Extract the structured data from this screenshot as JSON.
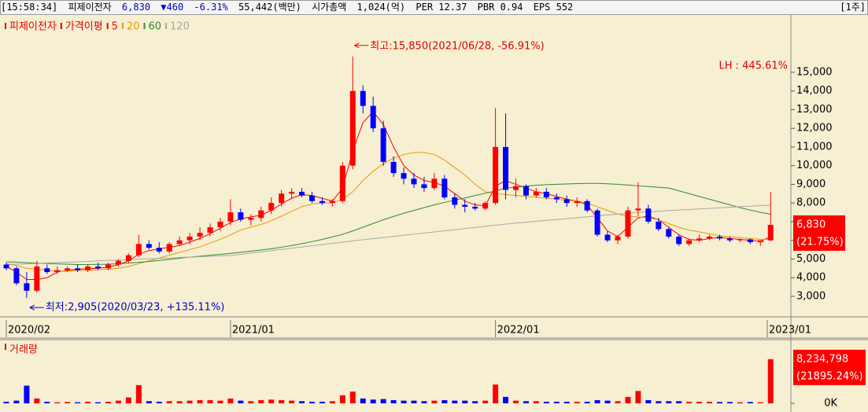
{
  "header": {
    "time": "[15:58:34]",
    "name": "피제이전자",
    "price": "6,830",
    "change": "▼460",
    "change_pct": "-6.31%",
    "volume": "55,442(백만)",
    "market_cap_label": "시가총액",
    "market_cap": "1,024(억)",
    "per": "PER 12.37",
    "pbr": "PBR 0.94",
    "eps": "EPS 552",
    "period": "[1주]"
  },
  "chart_data": {
    "type": "candlestick",
    "title": "피제이전자",
    "ma_label": "가격이평",
    "categories": [
      "2020/02",
      null,
      null,
      null,
      null,
      null,
      null,
      null,
      null,
      null,
      null,
      null,
      null,
      null,
      null,
      null,
      null,
      null,
      null,
      null,
      null,
      null,
      "2021/01",
      null,
      null,
      null,
      null,
      null,
      null,
      null,
      null,
      null,
      null,
      null,
      null,
      null,
      null,
      null,
      null,
      null,
      null,
      null,
      null,
      null,
      null,
      null,
      null,
      null,
      "2022/01",
      null,
      null,
      null,
      null,
      null,
      null,
      null,
      null,
      null,
      null,
      null,
      null,
      null,
      null,
      null,
      null,
      null,
      null,
      null,
      null,
      null,
      null,
      null,
      null,
      null,
      null,
      "2023/01"
    ],
    "open": [
      4700,
      4500,
      3700,
      3300,
      4500,
      4300,
      4400,
      4500,
      4400,
      4600,
      4500,
      4700,
      4900,
      5200,
      5800,
      5600,
      5400,
      5800,
      6000,
      6200,
      6400,
      6700,
      7000,
      7500,
      7100,
      7200,
      7600,
      8000,
      8500,
      8600,
      8400,
      8100,
      8000,
      8100,
      10000,
      14000,
      13200,
      12000,
      10200,
      9600,
      9300,
      9000,
      8800,
      9300,
      8300,
      7900,
      7800,
      7700,
      8000,
      11000,
      8700,
      8900,
      8400,
      8600,
      8300,
      8200,
      8000,
      8100,
      7600,
      6300,
      6000,
      6200,
      7600,
      7700,
      7000,
      6600,
      6200,
      5800,
      6000,
      6100,
      6200,
      6100,
      6000,
      6050,
      5900,
      6000
    ],
    "high": [
      4800,
      4600,
      4300,
      4900,
      4700,
      4600,
      4600,
      4700,
      4700,
      4800,
      4800,
      5000,
      5300,
      6300,
      6000,
      5900,
      5900,
      6200,
      6400,
      6700,
      6900,
      7200,
      8200,
      7700,
      7400,
      7800,
      8300,
      8700,
      8800,
      8800,
      8600,
      8300,
      8200,
      10200,
      15850,
      14300,
      13700,
      12400,
      10500,
      9900,
      9600,
      9400,
      9600,
      9500,
      8500,
      8200,
      8000,
      8100,
      13100,
      12800,
      9300,
      9000,
      8800,
      8800,
      8500,
      8400,
      8300,
      8200,
      7700,
      6500,
      6300,
      7800,
      9100,
      7900,
      7200,
      6700,
      6300,
      6100,
      6300,
      6300,
      6300,
      6200,
      6100,
      6100,
      6000,
      8600
    ],
    "low": [
      4400,
      3600,
      2905,
      3200,
      4200,
      4200,
      4300,
      4300,
      4300,
      4400,
      4400,
      4600,
      4800,
      5100,
      5500,
      5300,
      5300,
      5700,
      5800,
      6000,
      6200,
      6500,
      6800,
      7000,
      6800,
      7000,
      7400,
      7800,
      8200,
      8300,
      8000,
      7900,
      7800,
      8000,
      9800,
      12800,
      11800,
      10000,
      9400,
      9000,
      8800,
      8600,
      8700,
      8200,
      7700,
      7500,
      7600,
      7600,
      7900,
      8200,
      8300,
      8200,
      8300,
      8200,
      8000,
      7800,
      7800,
      7500,
      6200,
      5900,
      5800,
      6100,
      7300,
      6900,
      6500,
      6100,
      5700,
      5700,
      5900,
      6000,
      6000,
      5900,
      5900,
      5800,
      5700,
      5950
    ],
    "close": [
      4500,
      3700,
      3300,
      4600,
      4300,
      4400,
      4500,
      4400,
      4600,
      4500,
      4700,
      4900,
      5200,
      5800,
      5600,
      5400,
      5800,
      6000,
      6200,
      6400,
      6700,
      7000,
      7500,
      7100,
      7200,
      7600,
      8000,
      8500,
      8600,
      8400,
      8100,
      8000,
      8100,
      10000,
      14000,
      13200,
      12000,
      10200,
      9600,
      9300,
      9000,
      8800,
      9300,
      8300,
      7900,
      7800,
      7700,
      8000,
      11000,
      8700,
      8900,
      8400,
      8600,
      8300,
      8200,
      8000,
      8100,
      7600,
      6300,
      6000,
      6200,
      7600,
      7700,
      7000,
      6600,
      6200,
      5800,
      6000,
      6100,
      6200,
      6100,
      6000,
      6050,
      5900,
      6000,
      6830
    ],
    "up_color": "#ff0000",
    "down_color": "#0000ff",
    "moving_averages": [
      {
        "name": "5",
        "color": "#ff0000",
        "values": [
          4600,
          4300,
          3900,
          3900,
          4000,
          4300,
          4400,
          4450,
          4480,
          4500,
          4560,
          4700,
          4900,
          5250,
          5450,
          5550,
          5620,
          5720,
          5900,
          6100,
          6350,
          6650,
          6950,
          7150,
          7250,
          7350,
          7600,
          7950,
          8250,
          8450,
          8400,
          8250,
          8100,
          8800,
          10800,
          12300,
          12900,
          12200,
          11000,
          10000,
          9500,
          9200,
          9100,
          8900,
          8500,
          8100,
          7900,
          7850,
          8900,
          9200,
          9000,
          8800,
          8600,
          8500,
          8350,
          8200,
          8100,
          7900,
          7200,
          6500,
          6200,
          6700,
          7200,
          7300,
          7100,
          6700,
          6300,
          6050,
          6000,
          6100,
          6150,
          6100,
          6050,
          6000,
          5950,
          6200
        ]
      },
      {
        "name": "20",
        "color": "#e89a00",
        "values": [
          4750,
          4650,
          4500,
          4450,
          4400,
          4350,
          4350,
          4380,
          4400,
          4420,
          4450,
          4500,
          4600,
          4750,
          4900,
          5050,
          5200,
          5350,
          5500,
          5650,
          5850,
          6050,
          6300,
          6550,
          6700,
          6850,
          7050,
          7300,
          7550,
          7800,
          7950,
          8000,
          8000,
          8200,
          8600,
          9200,
          9700,
          10100,
          10400,
          10600,
          10700,
          10700,
          10600,
          10300,
          9900,
          9500,
          9000,
          8600,
          8500,
          8450,
          8400,
          8350,
          8300,
          8250,
          8200,
          8150,
          8100,
          8000,
          7800,
          7600,
          7400,
          7300,
          7250,
          7200,
          7100,
          6900,
          6700,
          6550,
          6450,
          6350,
          6250,
          6200,
          6150,
          6100,
          6050,
          6050
        ]
      },
      {
        "name": "60",
        "color": "#2e8b2e",
        "values": [
          4850,
          4830,
          4800,
          4780,
          4760,
          4740,
          4720,
          4700,
          4700,
          4710,
          4720,
          4750,
          4780,
          4820,
          4870,
          4920,
          4980,
          5040,
          5100,
          5150,
          5200,
          5250,
          5300,
          5360,
          5420,
          5480,
          5550,
          5630,
          5720,
          5820,
          5930,
          6050,
          6180,
          6320,
          6500,
          6700,
          6900,
          7100,
          7280,
          7450,
          7600,
          7750,
          7900,
          8030,
          8150,
          8270,
          8400,
          8520,
          8650,
          8800,
          8850,
          8900,
          8950,
          8980,
          9000,
          9020,
          9040,
          9050,
          9050,
          9030,
          9000,
          8960,
          8920,
          8880,
          8840,
          8800,
          8650,
          8500,
          8350,
          8200,
          8050,
          7900,
          7750,
          7620,
          7500,
          7400
        ]
      },
      {
        "name": "120",
        "color": "#a8a8a8",
        "values": [
          4700,
          4720,
          4740,
          4760,
          4790,
          4810,
          4830,
          4850,
          4870,
          4900,
          4920,
          4940,
          4960,
          4990,
          5010,
          5030,
          5050,
          5080,
          5100,
          5120,
          5140,
          5170,
          5190,
          5250,
          5320,
          5380,
          5450,
          5510,
          5580,
          5640,
          5710,
          5770,
          5840,
          5900,
          5970,
          6030,
          6090,
          6150,
          6210,
          6270,
          6330,
          6390,
          6450,
          6510,
          6570,
          6630,
          6690,
          6750,
          6810,
          6870,
          6920,
          6970,
          7020,
          7070,
          7110,
          7160,
          7210,
          7260,
          7310,
          7360,
          7400,
          7450,
          7500,
          7530,
          7560,
          7590,
          7620,
          7650,
          7680,
          7710,
          7740,
          7770,
          7800,
          7830,
          7860,
          7880
        ]
      }
    ],
    "ylim": [
      1900,
      18030
    ],
    "yticks": [
      {
        "value": 3000,
        "label": "3,000"
      },
      {
        "value": 4000,
        "label": "4,000"
      },
      {
        "value": 5000,
        "label": "5,000"
      },
      {
        "value": 6000,
        "label": "6,000"
      },
      {
        "value": 7000,
        "label": "7,000"
      },
      {
        "value": 8000,
        "label": "8,000"
      },
      {
        "value": 9000,
        "label": "9,000"
      },
      {
        "value": 10000,
        "label": "10,000"
      },
      {
        "value": 11000,
        "label": "11,000"
      },
      {
        "value": 12000,
        "label": "12,000"
      },
      {
        "value": 13000,
        "label": "13,000"
      },
      {
        "value": 14000,
        "label": "14,000"
      },
      {
        "value": 15000,
        "label": "15,000"
      }
    ],
    "high_annotation": "최고:15,850(2021/06/28, -56.91%)",
    "low_annotation": "최저:2,905(2020/03/23, +135.11%)",
    "lh_label": "LH : 445.61%",
    "current": {
      "value": 6830,
      "label": "6,830",
      "change": "(21.75%)"
    },
    "volume": {
      "title": "거래량",
      "up_color": "#ff0000",
      "down_color": "#0000ff",
      "values": [
        300000,
        500000,
        3300000,
        900000,
        300000,
        200000,
        250000,
        200000,
        300000,
        200000,
        300000,
        500000,
        1100000,
        3400000,
        400000,
        300000,
        400000,
        400000,
        500000,
        600000,
        600000,
        500000,
        900000,
        500000,
        400000,
        600000,
        700000,
        600000,
        500000,
        400000,
        300000,
        300000,
        400000,
        1500000,
        2200000,
        900000,
        700000,
        800000,
        600000,
        500000,
        500000,
        400000,
        500000,
        600000,
        500000,
        500000,
        400000,
        500000,
        3500000,
        1200000,
        500000,
        400000,
        400000,
        300000,
        300000,
        300000,
        300000,
        300000,
        600000,
        500000,
        400000,
        1200000,
        2300000,
        600000,
        400000,
        400000,
        400000,
        300000,
        300000,
        300000,
        250000,
        250000,
        200000,
        250000,
        200000,
        8234798
      ],
      "ylim": [
        0,
        10700000
      ],
      "yticks": [
        {
          "value": 0,
          "label": "0K"
        }
      ],
      "current": {
        "value": 8234798,
        "label": "8,234,798",
        "change": "(21895.24%)"
      }
    }
  }
}
